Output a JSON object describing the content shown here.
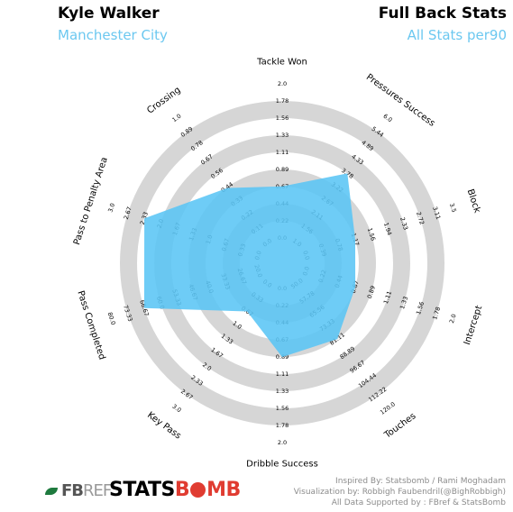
{
  "header": {
    "player": "Kyle Walker",
    "team": "Manchester City",
    "title": "Full Back Stats",
    "subtitle": "All Stats per90"
  },
  "colors": {
    "accent": "#6cc8f0",
    "fill": "#5ac5f5",
    "ring": "#d6d6d6",
    "statsbomb_red": "#e03c31",
    "fbref_green": "#1e7a3e"
  },
  "logos": {
    "fbref": {
      "fb": "FB",
      "ref": "REF"
    },
    "statsbomb": {
      "stats": "STATS",
      "b": "B",
      "mb": "MB"
    }
  },
  "credits": [
    "Inspired By: Statsbomb / Rami Moghadam",
    "Visualization by: Robbigh Faubendril(@BighRobbigh)",
    "All Data Supported by : FBref & StatsBomb"
  ],
  "chart_data": {
    "type": "radar",
    "ring_levels": 10,
    "params": [
      {
        "name": "Tackle Won",
        "ticks": [
          "0.0",
          "0.22",
          "0.44",
          "0.67",
          "0.89",
          "1.11",
          "1.33",
          "1.56",
          "1.78",
          "2.0"
        ],
        "max": 2.0,
        "value": 0.67
      },
      {
        "name": "Pressures Success",
        "ticks": [
          "1.0",
          "1.56",
          "2.11",
          "2.67",
          "3.22",
          "3.78",
          "4.33",
          "4.89",
          "5.44",
          "6.0"
        ],
        "min": 1.0,
        "max": 6.0,
        "value": 3.78
      },
      {
        "name": "Block",
        "ticks": [
          "0.0",
          "0.39",
          "0.78",
          "1.17",
          "1.56",
          "1.94",
          "2.33",
          "2.72",
          "3.11",
          "3.5"
        ],
        "max": 3.5,
        "value": 1.17
      },
      {
        "name": "Intercept",
        "ticks": [
          "0.0",
          "0.22",
          "0.44",
          "0.67",
          "0.89",
          "1.11",
          "1.33",
          "1.56",
          "1.78",
          "2.0"
        ],
        "max": 2.0,
        "value": 0.67
      },
      {
        "name": "Touches",
        "ticks": [
          "50.0",
          "57.78",
          "65.56",
          "73.33",
          "81.11",
          "88.89",
          "96.67",
          "104.44",
          "112.22",
          "120.0"
        ],
        "min": 50.0,
        "max": 120.0,
        "value": 81.11
      },
      {
        "name": "Dribble Success",
        "ticks": [
          "0.0",
          "0.22",
          "0.44",
          "0.67",
          "0.89",
          "1.11",
          "1.33",
          "1.56",
          "1.78",
          "2.0"
        ],
        "max": 2.0,
        "value": 0.89
      },
      {
        "name": "Key Pass",
        "ticks": [
          "0.0",
          "0.33",
          "0.67",
          "1.0",
          "1.33",
          "1.67",
          "2.0",
          "2.33",
          "2.67",
          "3.0"
        ],
        "max": 3.0,
        "value": 0.67
      },
      {
        "name": "Pass Completed",
        "ticks": [
          "20.0",
          "26.67",
          "33.33",
          "40.0",
          "46.67",
          "53.33",
          "60.0",
          "66.67",
          "73.33",
          "80.0"
        ],
        "min": 20.0,
        "max": 80.0,
        "value": 66.67
      },
      {
        "name": "Pass to Penalty Area",
        "ticks": [
          "0.0",
          "0.33",
          "0.67",
          "1.0",
          "1.33",
          "1.67",
          "2.0",
          "2.33",
          "2.67",
          "3.0"
        ],
        "max": 3.0,
        "value": 2.33
      },
      {
        "name": "Crossing",
        "ticks": [
          "0.0",
          "0.11",
          "0.22",
          "0.33",
          "0.44",
          "0.56",
          "0.67",
          "0.78",
          "0.89",
          "1.0"
        ],
        "max": 1.0,
        "value": 0.44
      }
    ]
  }
}
